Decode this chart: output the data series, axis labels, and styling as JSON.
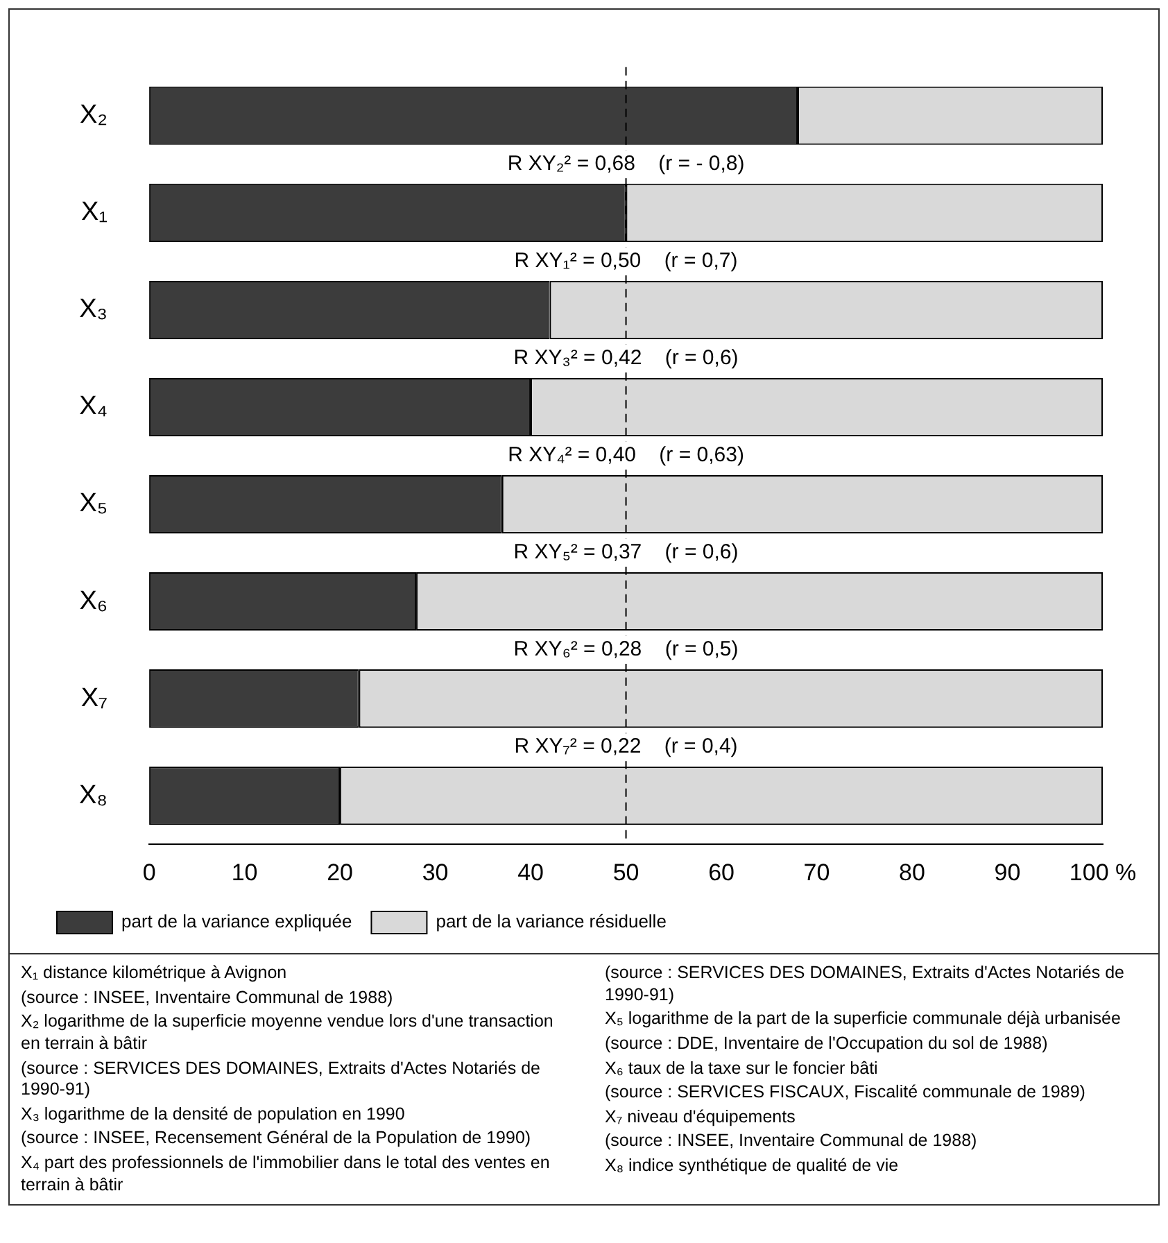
{
  "chart_data": {
    "type": "bar",
    "orientation": "horizontal",
    "stacked": true,
    "categories": [
      "X₂",
      "X₁",
      "X₃",
      "X₄",
      "X₅",
      "X₆",
      "X₇",
      "X₈"
    ],
    "series": [
      {
        "name": "part de la variance expliquée",
        "color": "#3c3c3c",
        "values": [
          68,
          50,
          42,
          40,
          37,
          28,
          22,
          20
        ]
      },
      {
        "name": "part de la variance résiduelle",
        "color": "#d9d9d9",
        "values": [
          32,
          50,
          58,
          60,
          63,
          72,
          78,
          80
        ]
      }
    ],
    "xlim": [
      0,
      100
    ],
    "xticks": [
      0,
      10,
      20,
      30,
      40,
      50,
      60,
      70,
      80,
      90,
      {
        "value": 100,
        "label": "100 %"
      }
    ],
    "grid": false,
    "legend": "bottom",
    "ref_lines": [
      {
        "axis": "x",
        "value": 50,
        "line_style": "dashed",
        "color": "#000000"
      }
    ],
    "annotations": [
      "R XY₂² = 0,68    (r = - 0,8)",
      "R XY₁² = 0,50    (r = 0,7)",
      "R XY₃² = 0,42    (r = 0,6)",
      "R XY₄² = 0,40    (r = 0,63)",
      "R XY₅² = 0,37    (r = 0,6)",
      "R XY₆² = 0,28    (r = 0,5)",
      "R XY₇² = 0,22    (r = 0,4)",
      "X₁ distance kilométrique à Avignon",
      "(source : INSEE, Inventaire Communal de 1988)",
      "X₂ logarithme de la superficie moyenne vendue lors d'une transaction en terrain à bâtir",
      "(source : SERVICES DES DOMAINES, Extraits d'Actes Notariés de 1990-91)",
      "X₃ logarithme de la densité de population en 1990",
      "(source : INSEE, Recensement Général de la Population de 1990)",
      "X₄ part des professionnels de l'immobilier dans le total des ventes en terrain à bâtir",
      "(source : SERVICES DES DOMAINES, Extraits d'Actes Notariés de 1990-91)",
      "X₅ logarithme de la part de la superficie communale déjà urbanisée",
      "(source : DDE, Inventaire de l'Occupation du sol de 1988)",
      "X₆ taux de la taxe sur le foncier bâti",
      "(source : SERVICES FISCAUX, Fiscalité communale de 1989)",
      "X₇ niveau d'équipements",
      "(source : INSEE, Inventaire Communal de 1988)",
      "X₈ indice synthétique de qualité de vie"
    ]
  }
}
